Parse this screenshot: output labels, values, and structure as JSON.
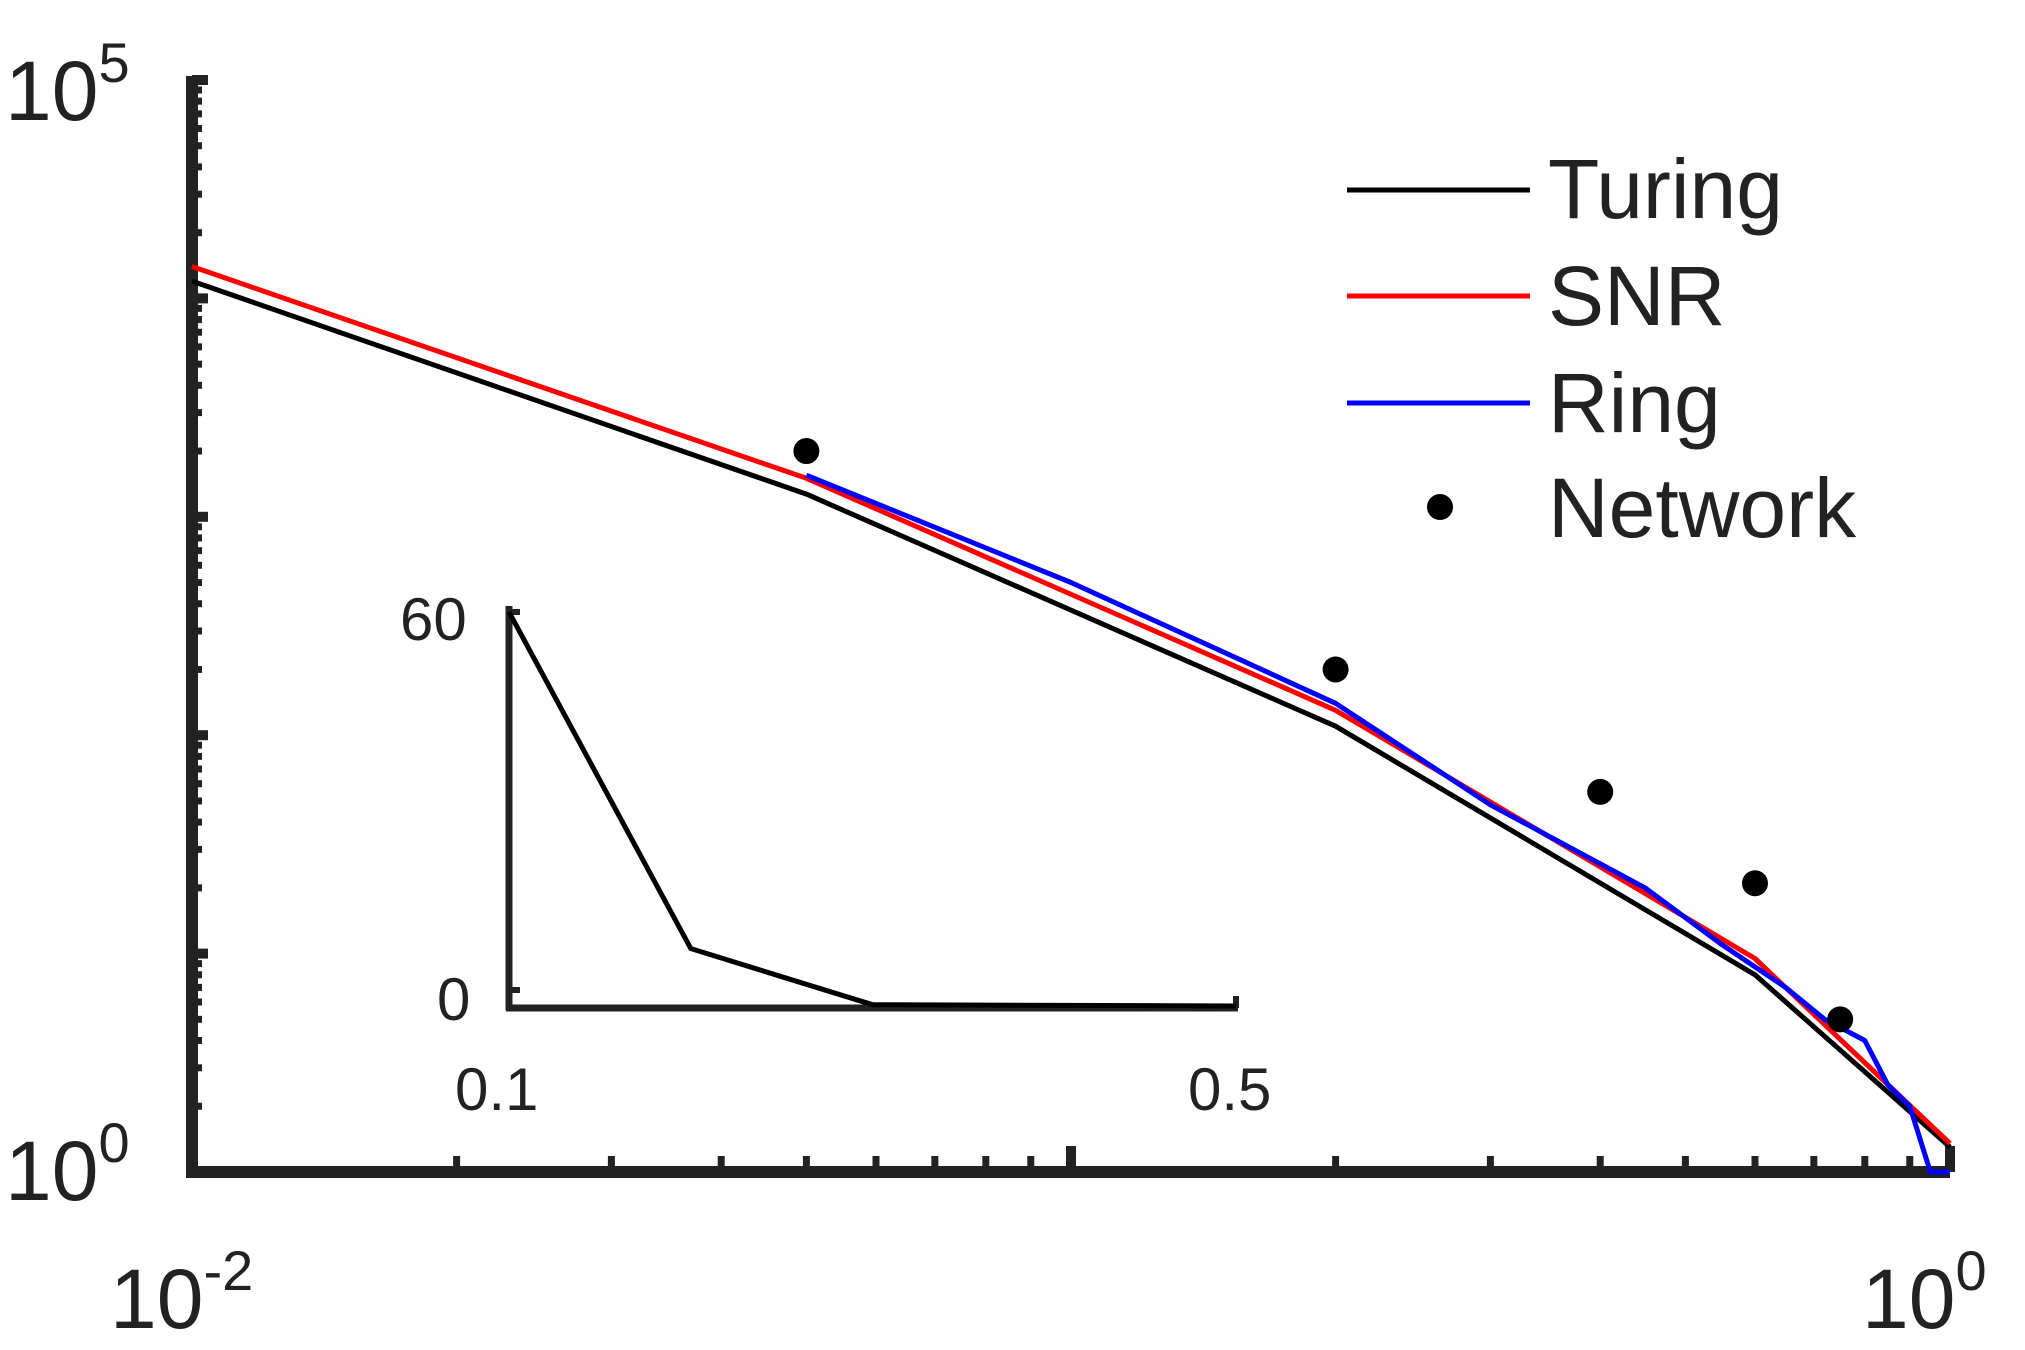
{
  "chart_data": {
    "type": "line",
    "title": "",
    "xlabel": "",
    "ylabel": "",
    "xscale": "log",
    "yscale": "log",
    "xlim": [
      0.01,
      1
    ],
    "ylim": [
      1,
      100000
    ],
    "x_tick_labels": [
      {
        "value": 0.01,
        "base": "10",
        "exp": "-2"
      },
      {
        "value": 1,
        "base": "10",
        "exp": "0"
      }
    ],
    "y_tick_labels": [
      {
        "value": 1,
        "base": "10",
        "exp": "0"
      },
      {
        "value": 100000,
        "base": "10",
        "exp": "5"
      }
    ],
    "legend_position": "top-right",
    "series": [
      {
        "name": "Turing",
        "color": "#000000",
        "style": "line",
        "x": [
          0.01,
          0.05,
          0.2,
          0.6,
          1.0
        ],
        "y": [
          12000,
          1270,
          110,
          8,
          1.3
        ]
      },
      {
        "name": "SNR",
        "color": "#ff0000",
        "style": "line",
        "x": [
          0.01,
          0.05,
          0.2,
          0.6,
          1.0
        ],
        "y": [
          14000,
          1500,
          130,
          9.5,
          1.35
        ]
      },
      {
        "name": "Ring",
        "color": "#0000ff",
        "style": "line",
        "x": [
          0.05,
          0.1,
          0.2,
          0.3,
          0.45,
          0.55,
          0.65,
          0.72,
          0.8,
          0.85,
          0.9,
          0.95,
          1.0
        ],
        "y": [
          1550,
          500,
          140,
          48,
          20,
          11,
          7,
          5,
          4,
          2.5,
          2,
          1,
          1
        ]
      },
      {
        "name": "Network",
        "color": "#000000",
        "style": "marker",
        "x": [
          0.05,
          0.2,
          0.4,
          0.6,
          0.75
        ],
        "y": [
          2000,
          200,
          55,
          21,
          5
        ]
      }
    ],
    "inset": {
      "type": "line",
      "xlim": [
        0.1,
        0.5
      ],
      "ylim": [
        0,
        60
      ],
      "x_tick_labels": [
        "0.1",
        "0.5"
      ],
      "y_tick_labels": [
        "0",
        "60"
      ],
      "series": [
        {
          "color": "#000000",
          "x": [
            0.1,
            0.2,
            0.3,
            0.5
          ],
          "y": [
            60,
            9,
            0.5,
            0.3
          ]
        }
      ]
    }
  }
}
